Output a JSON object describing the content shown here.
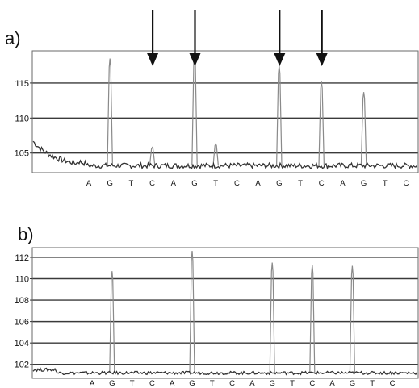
{
  "panels": [
    {
      "panel_label": "a)",
      "arrow_count": 4
    },
    {
      "panel_label": "b)"
    }
  ],
  "chart_data": [
    {
      "type": "line",
      "title": "",
      "xlabel": "",
      "ylabel": "",
      "ylim": [
        102.2,
        119.6
      ],
      "yticks": [
        105,
        110,
        115
      ],
      "x": [
        "A",
        "G",
        "T",
        "C",
        "A",
        "G",
        "T",
        "C",
        "A",
        "G",
        "T",
        "C",
        "A",
        "G",
        "T",
        "C"
      ],
      "series": [
        {
          "values": [
            103.4,
            118.5,
            103.2,
            105.8,
            103.4,
            119.4,
            106.3,
            103.2,
            103.3,
            117.5,
            103.2,
            115.2,
            103.3,
            113.7,
            103.2,
            103.2
          ]
        }
      ],
      "arrows_at": [
        3,
        5,
        9,
        11
      ],
      "grid": true
    },
    {
      "type": "line",
      "title": "",
      "xlabel": "",
      "ylabel": "",
      "ylim": [
        100.7,
        112.9
      ],
      "yticks": [
        102,
        104,
        106,
        108,
        110,
        112
      ],
      "x": [
        "A",
        "G",
        "T",
        "C",
        "A",
        "G",
        "T",
        "C",
        "A",
        "G",
        "T",
        "C",
        "A",
        "G",
        "T",
        "C"
      ],
      "series": [
        {
          "values": [
            100.8,
            110.7,
            100.8,
            100.8,
            100.8,
            112.6,
            100.8,
            100.8,
            100.8,
            111.5,
            100.8,
            111.3,
            100.8,
            111.2,
            100.8,
            100.8
          ]
        }
      ],
      "grid": true
    }
  ]
}
